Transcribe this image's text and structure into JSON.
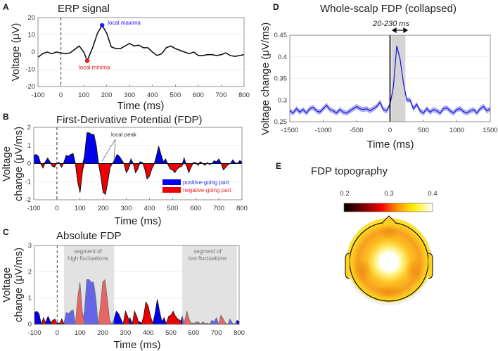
{
  "chart_data": [
    {
      "panel": "A",
      "type": "line",
      "title": "ERP signal",
      "xlabel": "Time (ms)",
      "ylabel": "Voltage (μV)",
      "xlim": [
        -100,
        800
      ],
      "ylim": [
        -20,
        20
      ],
      "xticks": [
        -100,
        0,
        100,
        200,
        300,
        400,
        500,
        600,
        700,
        800
      ],
      "yticks": [
        -20,
        -10,
        0,
        10,
        20
      ],
      "x": [
        -100,
        -80,
        -60,
        -40,
        -20,
        0,
        20,
        40,
        60,
        80,
        100,
        115,
        140,
        160,
        180,
        200,
        220,
        240,
        260,
        280,
        300,
        320,
        340,
        360,
        380,
        400,
        420,
        440,
        460,
        480,
        500,
        520,
        540,
        560,
        580,
        600,
        620,
        640,
        660,
        680,
        700,
        720,
        740,
        760,
        780,
        800
      ],
      "y": [
        -3,
        -1,
        0,
        -1,
        0,
        -0.5,
        -1,
        -0.5,
        1.5,
        3.5,
        0,
        -5,
        3,
        11,
        15.5,
        11,
        3,
        2,
        2,
        3.5,
        5,
        3.5,
        4,
        2.5,
        2.5,
        0,
        -2,
        -1,
        2.5,
        3.5,
        2,
        1,
        0,
        -1,
        0,
        -2,
        -2,
        -1.5,
        -1.5,
        -2,
        -1.5,
        -0.5,
        -2,
        -2.5,
        -2,
        -1.5
      ],
      "annotations": [
        {
          "text": "local maxima",
          "x": 180,
          "y": 15.5,
          "color": "#1a1aff"
        },
        {
          "text": "local minima",
          "x": 115,
          "y": -5,
          "color": "#e02020"
        }
      ]
    },
    {
      "panel": "B",
      "type": "area",
      "title": "First-Derivative Potential (FDP)",
      "xlabel": "Time (ms)",
      "ylabel_line1": "Voltage",
      "ylabel_line2": "change (μV/ms)",
      "xlim": [
        -100,
        800
      ],
      "ylim": [
        -2,
        2
      ],
      "xticks": [
        -100,
        0,
        100,
        200,
        300,
        400,
        500,
        600,
        700,
        800
      ],
      "yticks": [
        -2,
        -1,
        0,
        1,
        2
      ],
      "annotation": "local peak",
      "legend": [
        {
          "label": "positive-going part",
          "color": "#0000ee"
        },
        {
          "label": "negative-going part",
          "color": "#ee0000"
        }
      ],
      "legend_position": "bottom-right"
    },
    {
      "panel": "C",
      "type": "area",
      "title": "Absolute FDP",
      "xlabel": "Time (ms)",
      "ylabel_line1": "Voltage",
      "ylabel_line2": "change (μV/ms)",
      "xlim": [
        -100,
        800
      ],
      "ylim": [
        0,
        3
      ],
      "xticks": [
        -100,
        0,
        100,
        200,
        300,
        400,
        500,
        600,
        700,
        800
      ],
      "yticks": [
        0,
        1,
        2,
        3
      ],
      "segments": [
        {
          "range": [
            30,
            250
          ],
          "line1": "segment of",
          "line2": "high fluctuations"
        },
        {
          "range": [
            550,
            790
          ],
          "line1": "segment of",
          "line2": "low fluctuations"
        }
      ]
    },
    {
      "panel": "D",
      "type": "line",
      "title": "Whole-scalp FDP (collapsed)",
      "xlabel": "Time (ms)",
      "ylabel": "Voltage change (μV/ms)",
      "xlim": [
        -1500,
        1500
      ],
      "ylim": [
        0.25,
        0.45
      ],
      "xticks": [
        -1500,
        -1000,
        -500,
        0,
        500,
        1000,
        1500
      ],
      "yticks": [
        0.25,
        0.3,
        0.35,
        0.4,
        0.45
      ],
      "window": {
        "range": [
          20,
          230
        ],
        "label": "20-230 ms"
      },
      "x_start": -1500,
      "x_step": 50,
      "error_band": 0.006,
      "y": [
        0.275,
        0.27,
        0.28,
        0.272,
        0.278,
        0.27,
        0.28,
        0.283,
        0.275,
        0.272,
        0.28,
        0.288,
        0.278,
        0.275,
        0.27,
        0.278,
        0.272,
        0.27,
        0.275,
        0.28,
        0.285,
        0.28,
        0.278,
        0.28,
        0.275,
        0.28,
        0.285,
        0.295,
        0.278,
        0.275,
        0.29,
        0.33,
        0.425,
        0.395,
        0.34,
        0.3,
        0.3,
        0.28,
        0.29,
        0.275,
        0.27,
        0.28,
        0.272,
        0.278,
        0.275,
        0.27,
        0.28,
        0.282,
        0.275,
        0.27,
        0.278,
        0.28,
        0.273,
        0.27,
        0.275,
        0.278,
        0.27,
        0.28,
        0.285,
        0.275,
        0.28
      ]
    },
    {
      "panel": "E",
      "type": "heatmap",
      "title": "FDP topography",
      "colorbar_ticks": [
        "0.2",
        "0.3",
        "0.4"
      ],
      "colorbar_range": [
        0.2,
        0.4
      ]
    }
  ],
  "fdp": {
    "x_start": -100,
    "x_step": 10,
    "y": [
      0.45,
      0.5,
      0.4,
      0.0,
      -0.25,
      0.1,
      0.3,
      0.1,
      -0.15,
      -0.2,
      0.05,
      0.05,
      -0.2,
      0.05,
      0.45,
      0.4,
      0.5,
      0.55,
      0.0,
      -1.0,
      -1.6,
      -0.5,
      0.5,
      1.7,
      1.7,
      1.6,
      1.6,
      1.0,
      0.0,
      -0.7,
      -1.6,
      -1.7,
      -1.0,
      -0.2,
      0.0,
      0.2,
      0.5,
      0.4,
      0.2,
      0.0,
      -0.5,
      -0.3,
      0.25,
      0.0,
      -0.5,
      -0.3,
      0.1,
      0.05,
      -0.3,
      -0.85,
      -0.7,
      -0.3,
      -0.05,
      0.4,
      0.95,
      0.5,
      0.1,
      0.25,
      -0.05,
      -0.3,
      -0.35,
      -0.5,
      -0.3,
      -0.2,
      -0.15,
      0.3,
      -0.1,
      -0.5,
      -0.2,
      0.05,
      0.05,
      -0.1,
      0.1,
      0.0,
      -0.1,
      0.05,
      -0.05,
      0.0,
      0.15,
      0.1,
      0.25,
      0.0,
      -0.35,
      -0.2,
      -0.05,
      0.0,
      0.2,
      0.05,
      0.0,
      0.15,
      0.1
    ]
  },
  "panel_labels": [
    "A",
    "B",
    "C",
    "D",
    "E"
  ]
}
